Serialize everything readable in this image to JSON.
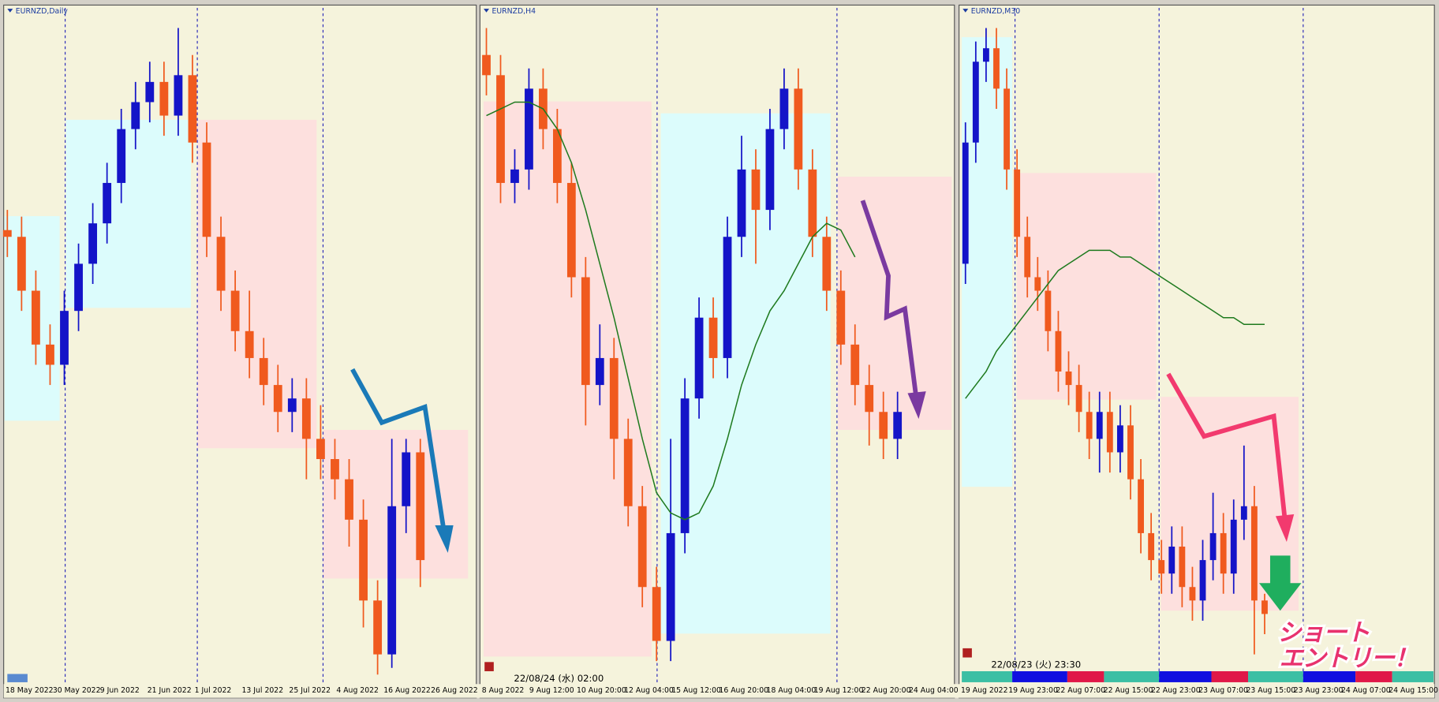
{
  "chart_data": [
    {
      "type": "candlestick",
      "title": "EURNZD,Daily",
      "ylim": [
        0,
        100
      ],
      "colors": {
        "up": "#1414c8",
        "down": "#f05a1e"
      },
      "categories": [
        "18 May 2022",
        "30 May 2022",
        "9 Jun 2022",
        "21 Jun 2022",
        "1 Jul 2022",
        "13 Jul 2022",
        "25 Jul 2022",
        "4 Aug 2022",
        "16 Aug 2022",
        "26 Aug 2022"
      ],
      "open": [
        67,
        66,
        58,
        50,
        47,
        55,
        62,
        68,
        74,
        82,
        86,
        89,
        84,
        90,
        80,
        66,
        58,
        52,
        48,
        44,
        40,
        42,
        36,
        33,
        30,
        24,
        12,
        4,
        26,
        34
      ],
      "high": [
        70,
        69,
        61,
        53,
        58,
        65,
        71,
        77,
        85,
        89,
        92,
        92,
        97,
        93,
        83,
        69,
        61,
        58,
        51,
        47,
        45,
        45,
        41,
        36,
        33,
        27,
        15,
        36,
        36,
        36
      ],
      "low": [
        63,
        55,
        47,
        44,
        44,
        52,
        59,
        65,
        71,
        79,
        83,
        81,
        81,
        77,
        63,
        55,
        49,
        45,
        41,
        37,
        37,
        30,
        30,
        27,
        20,
        8,
        1,
        2,
        22,
        14
      ],
      "close": [
        66,
        58,
        50,
        47,
        55,
        62,
        68,
        74,
        82,
        86,
        89,
        84,
        90,
        80,
        66,
        58,
        52,
        48,
        44,
        40,
        42,
        36,
        33,
        30,
        24,
        12,
        4,
        26,
        34,
        18
      ]
    },
    {
      "type": "candlestick",
      "title": "EURNZD,H4",
      "ylim": [
        0,
        100
      ],
      "colors": {
        "up": "#1414c8",
        "down": "#f05a1e"
      },
      "categories": [
        "8 Aug 2022",
        "9 Aug 12:00",
        "10 Aug 20:00",
        "12 Aug 04:00",
        "15 Aug 12:00",
        "16 Aug 20:00",
        "18 Aug 04:00",
        "19 Aug 12:00",
        "22 Aug 20:00",
        "24 Aug 04:00"
      ],
      "cursor_time": "22/08/24 (水) 02:00",
      "open": [
        93,
        90,
        74,
        76,
        88,
        82,
        74,
        60,
        44,
        48,
        36,
        26,
        14,
        6,
        22,
        42,
        54,
        48,
        66,
        76,
        70,
        82,
        88,
        76,
        66,
        58,
        50,
        44,
        40,
        36
      ],
      "high": [
        97,
        93,
        79,
        91,
        91,
        85,
        77,
        63,
        53,
        51,
        39,
        29,
        17,
        36,
        45,
        57,
        57,
        69,
        81,
        79,
        85,
        91,
        91,
        79,
        69,
        61,
        53,
        47,
        43,
        43
      ],
      "low": [
        87,
        71,
        71,
        73,
        79,
        71,
        57,
        38,
        41,
        30,
        23,
        11,
        3,
        3,
        19,
        39,
        45,
        45,
        63,
        62,
        67,
        79,
        73,
        63,
        55,
        47,
        41,
        35,
        33,
        33
      ],
      "close": [
        90,
        74,
        76,
        88,
        82,
        74,
        60,
        44,
        48,
        36,
        26,
        14,
        6,
        22,
        42,
        54,
        48,
        66,
        76,
        70,
        82,
        88,
        76,
        66,
        58,
        50,
        44,
        40,
        36,
        40
      ],
      "ma": {
        "color": "#1e7a1e",
        "values": [
          84,
          85,
          86,
          86,
          85,
          82,
          77,
          70,
          62,
          54,
          45,
          36,
          28,
          25,
          24,
          25,
          29,
          36,
          44,
          50,
          55,
          58,
          62,
          66,
          68,
          67,
          63,
          null,
          null,
          null
        ]
      }
    },
    {
      "type": "candlestick",
      "title": "EURNZD,M30",
      "ylim": [
        0,
        100
      ],
      "colors": {
        "up": "#1414c8",
        "down": "#f05a1e"
      },
      "categories": [
        "19 Aug 2022",
        "19 Aug 23:00",
        "22 Aug 07:00",
        "22 Aug 15:00",
        "22 Aug 23:00",
        "23 Aug 07:00",
        "23 Aug 15:00",
        "23 Aug 23:00",
        "24 Aug 07:00",
        "24 Aug 15:00"
      ],
      "cursor_time": "22/08/23 (火) 23:30",
      "annotation": [
        "ショート",
        "エントリー！"
      ],
      "open": [
        62,
        80,
        92,
        94,
        88,
        76,
        66,
        60,
        58,
        52,
        46,
        44,
        40,
        36,
        40,
        34,
        38,
        30,
        22,
        18,
        16,
        20,
        14,
        12,
        18,
        22,
        16,
        24,
        26,
        12
      ],
      "high": [
        83,
        95,
        97,
        97,
        91,
        79,
        69,
        63,
        61,
        55,
        49,
        47,
        43,
        43,
        43,
        41,
        41,
        33,
        25,
        21,
        23,
        23,
        17,
        21,
        28,
        25,
        27,
        35,
        29,
        13
      ],
      "low": [
        59,
        77,
        89,
        85,
        73,
        63,
        57,
        55,
        49,
        43,
        41,
        37,
        33,
        31,
        31,
        31,
        27,
        19,
        15,
        13,
        13,
        11,
        9,
        9,
        15,
        13,
        13,
        21,
        4,
        7
      ],
      "close": [
        80,
        92,
        94,
        88,
        76,
        66,
        60,
        58,
        52,
        46,
        44,
        40,
        36,
        40,
        34,
        38,
        30,
        22,
        18,
        16,
        20,
        14,
        12,
        18,
        22,
        16,
        24,
        26,
        12,
        10
      ],
      "ma": {
        "color": "#1e7a1e",
        "values": [
          42,
          44,
          46,
          49,
          51,
          53,
          55,
          57,
          59,
          61,
          62,
          63,
          64,
          64,
          64,
          63,
          63,
          62,
          61,
          60,
          59,
          58,
          57,
          56,
          55,
          54,
          54,
          53,
          53,
          53
        ]
      }
    }
  ]
}
